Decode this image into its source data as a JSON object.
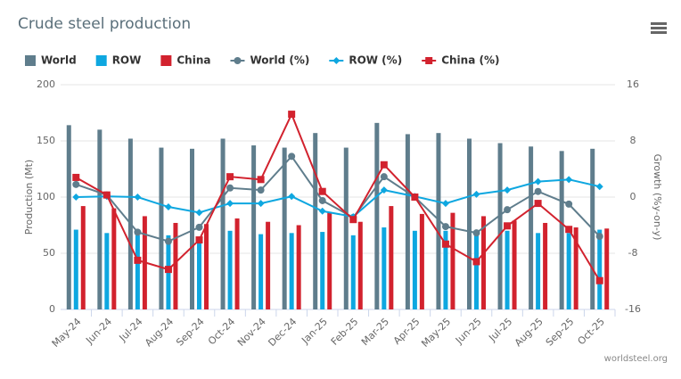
{
  "chart_data": {
    "type": "combo",
    "title": "Crude steel production",
    "ylabel": "Production (Mt)",
    "y2label": "Growth (%y-on-y)",
    "credit": "worldsteel.org",
    "categories": [
      "May-24",
      "Jun-24",
      "Jul-24",
      "Aug-24",
      "Sep-24",
      "Oct-24",
      "Nov-24",
      "Dec-24",
      "Jan-25",
      "Feb-25",
      "Mar-25",
      "Apr-25",
      "May-25",
      "Jun-25",
      "Jul-25",
      "Aug-25",
      "Sep-25",
      "Oct-25"
    ],
    "ylim": [
      0,
      200
    ],
    "yticks": [
      0,
      50,
      100,
      150,
      200
    ],
    "y2lim": [
      -16,
      16
    ],
    "y2ticks": [
      -16,
      -8,
      0,
      8,
      16
    ],
    "grid": true,
    "series": [
      {
        "name": "World",
        "type": "bar",
        "color": "#5f7d8c",
        "values": [
          164,
          160,
          152,
          144,
          143,
          152,
          146,
          144,
          157,
          144,
          166,
          156,
          157,
          152,
          148,
          145,
          141,
          143
        ]
      },
      {
        "name": "ROW",
        "type": "bar",
        "color": "#0ea7e0",
        "values": [
          71,
          68,
          66,
          66,
          63,
          70,
          67,
          68,
          69,
          66,
          73,
          70,
          70,
          68,
          70,
          68,
          68,
          71
        ]
      },
      {
        "name": "China",
        "type": "bar",
        "color": "#d2222e",
        "values": [
          92,
          90,
          83,
          77,
          76,
          81,
          78,
          75,
          86,
          78,
          92,
          85,
          86,
          83,
          79,
          77,
          73,
          72
        ]
      },
      {
        "name": "World (%)",
        "type": "line",
        "axis": "y2",
        "marker": "circle",
        "color": "#5f7d8c",
        "values": [
          1.8,
          0.3,
          -5.0,
          -6.3,
          -4.3,
          1.3,
          1.0,
          5.8,
          -0.5,
          -2.9,
          2.9,
          0,
          -4.2,
          -5.1,
          -1.8,
          0.8,
          -1.0,
          -5.6
        ]
      },
      {
        "name": "ROW (%)",
        "type": "line",
        "axis": "y2",
        "marker": "diamond",
        "color": "#0ea7e0",
        "values": [
          0,
          0.1,
          0,
          -1.4,
          -2.2,
          -0.9,
          -0.9,
          0.1,
          -2.0,
          -2.8,
          1.0,
          0.1,
          -0.9,
          0.4,
          1.0,
          2.2,
          2.5,
          1.5
        ]
      },
      {
        "name": "China (%)",
        "type": "line",
        "axis": "y2",
        "marker": "square",
        "color": "#d2222e",
        "values": [
          2.8,
          0.3,
          -9.0,
          -10.3,
          -6.1,
          2.9,
          2.5,
          11.8,
          0.8,
          -3.2,
          4.6,
          0,
          -6.7,
          -9.2,
          -4.1,
          -0.9,
          -4.6,
          -11.9
        ]
      }
    ]
  }
}
